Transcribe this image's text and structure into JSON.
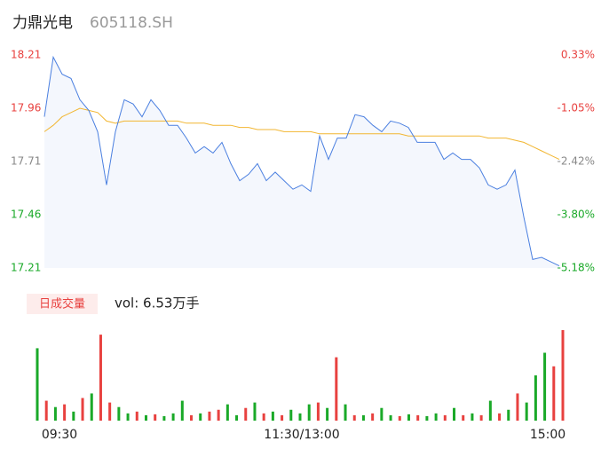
{
  "header": {
    "name": "力鼎光电",
    "code": "605118.SH"
  },
  "chart_data": [
    {
      "type": "line",
      "price": {
        "color": "#4a7fe0",
        "values": [
          17.92,
          18.2,
          18.12,
          18.1,
          18.0,
          17.95,
          17.85,
          17.6,
          17.85,
          18.0,
          17.98,
          17.92,
          18.0,
          17.95,
          17.88,
          17.88,
          17.82,
          17.75,
          17.78,
          17.75,
          17.8,
          17.7,
          17.62,
          17.65,
          17.7,
          17.62,
          17.66,
          17.62,
          17.58,
          17.6,
          17.57,
          17.83,
          17.72,
          17.82,
          17.82,
          17.93,
          17.92,
          17.88,
          17.85,
          17.9,
          17.89,
          17.87,
          17.8,
          17.8,
          17.8,
          17.72,
          17.75,
          17.72,
          17.72,
          17.68,
          17.6,
          17.58,
          17.6,
          17.67,
          17.45,
          17.25,
          17.26,
          17.24,
          17.22
        ]
      },
      "average": {
        "color": "#f2b631",
        "values": [
          17.85,
          17.88,
          17.92,
          17.94,
          17.96,
          17.95,
          17.94,
          17.9,
          17.89,
          17.9,
          17.9,
          17.9,
          17.9,
          17.9,
          17.9,
          17.9,
          17.89,
          17.89,
          17.89,
          17.88,
          17.88,
          17.88,
          17.87,
          17.87,
          17.86,
          17.86,
          17.86,
          17.85,
          17.85,
          17.85,
          17.85,
          17.84,
          17.84,
          17.84,
          17.84,
          17.84,
          17.84,
          17.84,
          17.84,
          17.84,
          17.84,
          17.83,
          17.83,
          17.83,
          17.83,
          17.83,
          17.83,
          17.83,
          17.83,
          17.83,
          17.82,
          17.82,
          17.82,
          17.81,
          17.8,
          17.78,
          17.76,
          17.74,
          17.72
        ]
      },
      "area_color": "#f4f7fd",
      "ylim": [
        17.21,
        18.21
      ],
      "yticks": [
        18.21,
        17.96,
        17.71,
        17.46,
        17.21
      ],
      "ytick_colors": [
        "#e8413f",
        "#e8413f",
        "#888888",
        "#1aa928",
        "#1aa928"
      ],
      "y2lim": [
        -5.18,
        0.33
      ],
      "y2ticks": [
        {
          "value": 0.33,
          "label": "0.33%"
        },
        {
          "value": -1.05,
          "label": "-1.05%"
        },
        {
          "value": -2.42,
          "label": "-2.42%"
        },
        {
          "value": -3.8,
          "label": "-3.80%"
        },
        {
          "value": -5.18,
          "label": "-5.18%"
        }
      ],
      "y2tick_colors": [
        "#e8413f",
        "#e8413f",
        "#888888",
        "#1aa928",
        "#1aa928"
      ]
    },
    {
      "type": "bar",
      "label": "日成交量",
      "summary": "vol: 6.53万手",
      "values": [
        80,
        22,
        15,
        18,
        10,
        25,
        30,
        95,
        20,
        15,
        8,
        10,
        6,
        7,
        5,
        8,
        22,
        6,
        8,
        10,
        12,
        18,
        6,
        14,
        20,
        8,
        10,
        6,
        12,
        8,
        18,
        20,
        14,
        70,
        18,
        6,
        6,
        8,
        14,
        6,
        5,
        7,
        6,
        5,
        8,
        6,
        14,
        6,
        8,
        6,
        22,
        8,
        12,
        30,
        20,
        50,
        75,
        60,
        100
      ],
      "up": [
        0,
        1,
        0,
        1,
        0,
        1,
        0,
        1,
        1,
        0,
        0,
        1,
        0,
        1,
        0,
        0,
        0,
        1,
        0,
        1,
        1,
        0,
        0,
        1,
        0,
        1,
        0,
        1,
        0,
        0,
        0,
        1,
        0,
        1,
        0,
        1,
        0,
        1,
        0,
        0,
        1,
        0,
        1,
        0,
        0,
        1,
        0,
        1,
        0,
        1,
        0,
        1,
        0,
        1,
        0,
        0,
        0,
        1,
        1
      ],
      "up_color": "#e8413f",
      "down_color": "#1aa928",
      "ylim": [
        0,
        100
      ],
      "x_labels": [
        "09:30",
        "11:30/13:00",
        "15:00"
      ]
    }
  ]
}
